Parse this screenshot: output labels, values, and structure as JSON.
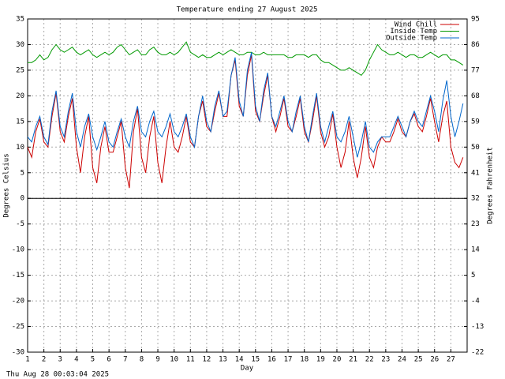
{
  "chart_data": {
    "type": "line",
    "title": "Temperature ending 27 August 2025",
    "x_label": "Day",
    "y_label": "Degrees Celsius",
    "y2_label": "Degrees Fahrenheit",
    "footer": "Thu Aug 28 00:03:04 2025",
    "xlim": [
      1,
      28
    ],
    "xticks": [
      1,
      2,
      3,
      4,
      5,
      6,
      7,
      8,
      9,
      10,
      11,
      12,
      13,
      14,
      15,
      16,
      17,
      18,
      19,
      20,
      21,
      22,
      23,
      24,
      25,
      26,
      27
    ],
    "ylim": [
      -30,
      35
    ],
    "yticks": [
      -30,
      -25,
      -20,
      -15,
      -10,
      -5,
      0,
      5,
      10,
      15,
      20,
      25,
      30,
      35
    ],
    "y2lim": [
      -22,
      95
    ],
    "y2ticks": [
      -22,
      -13,
      -4,
      5,
      14,
      23,
      32,
      41,
      50,
      59,
      68,
      77,
      86,
      95
    ],
    "grid": true,
    "legend": "top-right",
    "x": [
      1,
      1.25,
      1.5,
      1.75,
      2,
      2.25,
      2.5,
      2.75,
      3,
      3.25,
      3.5,
      3.75,
      4,
      4.25,
      4.5,
      4.75,
      5,
      5.25,
      5.5,
      5.75,
      6,
      6.25,
      6.5,
      6.75,
      7,
      7.25,
      7.5,
      7.75,
      8,
      8.25,
      8.5,
      8.75,
      9,
      9.25,
      9.5,
      9.75,
      10,
      10.25,
      10.5,
      10.75,
      11,
      11.25,
      11.5,
      11.75,
      12,
      12.25,
      12.5,
      12.75,
      13,
      13.25,
      13.5,
      13.75,
      14,
      14.25,
      14.5,
      14.75,
      15,
      15.25,
      15.5,
      15.75,
      16,
      16.25,
      16.5,
      16.75,
      17,
      17.25,
      17.5,
      17.75,
      18,
      18.25,
      18.5,
      18.75,
      19,
      19.25,
      19.5,
      19.75,
      20,
      20.25,
      20.5,
      20.75,
      21,
      21.25,
      21.5,
      21.75,
      22,
      22.25,
      22.5,
      22.75,
      23,
      23.25,
      23.5,
      23.75,
      24,
      24.25,
      24.5,
      24.75,
      25,
      25.25,
      25.5,
      25.75,
      26,
      26.25,
      26.5,
      26.75,
      27,
      27.25,
      27.5,
      27.75
    ],
    "series": [
      {
        "name": "Wind Chill",
        "color": "#cc0000",
        "values": [
          10,
          8,
          13,
          15.5,
          11,
          10,
          16,
          20.5,
          13,
          11,
          16,
          19.5,
          10,
          5,
          12,
          16,
          6,
          3,
          10,
          14,
          9,
          9,
          12,
          15,
          6,
          2,
          13,
          17.5,
          8,
          5,
          12,
          16,
          7,
          3,
          10,
          15,
          10,
          9,
          12,
          16,
          11,
          10,
          16,
          19,
          14,
          13,
          17,
          20.5,
          16,
          16,
          24,
          27,
          18,
          16,
          24,
          28,
          17,
          15,
          20,
          24,
          16,
          13,
          16,
          19.5,
          14,
          13,
          16,
          19.5,
          13,
          11,
          15,
          20,
          13,
          10,
          12,
          16.5,
          10,
          6,
          9,
          15,
          8,
          4,
          8,
          14,
          8,
          6,
          10,
          12,
          11,
          11,
          13,
          15.5,
          13,
          12,
          15,
          16.5,
          14,
          13,
          16,
          19.5,
          15,
          11,
          16,
          19,
          10,
          7,
          6,
          8
        ]
      },
      {
        "name": "Inside Temp",
        "color": "#009900",
        "values": [
          26.5,
          26.5,
          27,
          28,
          27,
          27.5,
          29,
          30,
          29,
          28.5,
          29,
          29.5,
          28.5,
          28,
          28.5,
          29,
          28,
          27.5,
          28,
          28.5,
          28,
          28.5,
          29.5,
          30,
          29,
          28,
          28.5,
          29,
          28,
          28,
          29,
          29.5,
          28.5,
          28,
          28,
          28.5,
          28,
          28.5,
          29.5,
          30.5,
          28.5,
          28,
          27.5,
          28,
          27.5,
          27.5,
          28,
          28.5,
          28,
          28.5,
          29,
          28.5,
          28,
          28,
          28.5,
          28.5,
          28,
          28,
          28.5,
          28,
          28,
          28,
          28,
          28,
          27.5,
          27.5,
          28,
          28,
          28,
          27.5,
          28,
          28,
          27,
          26.5,
          26.5,
          26,
          25.5,
          25,
          25,
          25.5,
          25,
          24.5,
          24,
          25,
          27,
          28.5,
          30,
          29,
          28.5,
          28,
          28,
          28.5,
          28,
          27.5,
          28,
          28,
          27.5,
          27.5,
          28,
          28.5,
          28,
          27.5,
          28,
          28,
          27,
          27,
          26.5,
          26
        ]
      },
      {
        "name": "Outside Temp",
        "color": "#0066cc",
        "values": [
          12,
          11,
          14,
          16,
          12,
          10.5,
          17,
          21,
          14,
          12,
          17,
          20.5,
          13,
          10,
          14,
          16.5,
          12,
          9.5,
          12,
          15,
          11,
          10,
          13,
          15.5,
          12,
          10,
          15,
          18,
          13,
          12,
          15,
          17,
          13,
          12,
          14,
          16.5,
          13,
          12,
          14,
          16.5,
          12,
          10,
          16,
          20,
          15,
          13,
          18,
          21,
          16,
          17,
          24,
          27.5,
          19,
          16,
          25,
          28.5,
          18,
          15,
          21,
          24.5,
          16,
          14,
          17,
          20,
          15,
          13,
          17,
          20,
          14,
          11,
          16,
          20.5,
          14,
          11,
          14,
          17,
          12,
          11,
          13,
          16,
          12,
          8,
          11,
          15,
          10,
          9,
          11,
          12,
          12,
          12,
          14,
          16,
          14,
          12,
          15,
          17,
          15,
          14,
          17,
          20,
          17,
          13,
          19,
          23,
          16,
          12,
          15,
          18.5
        ]
      }
    ]
  }
}
